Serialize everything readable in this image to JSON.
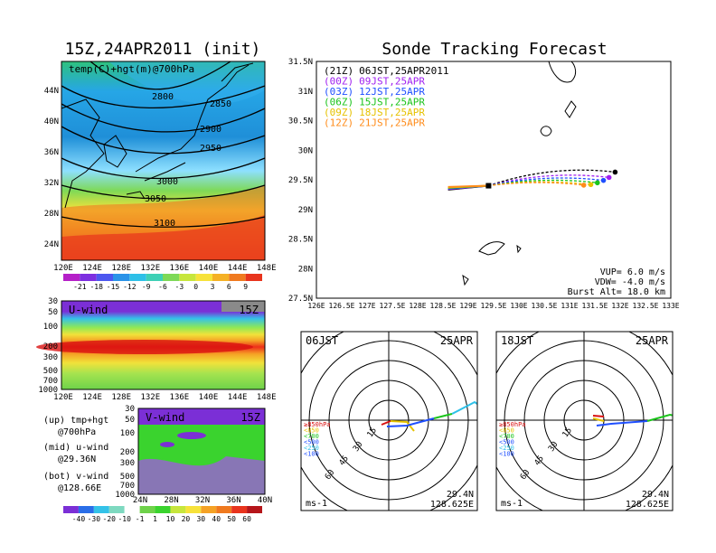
{
  "page": {
    "left_title": "15Z,24APR2011 (init)",
    "right_title": "Sonde Tracking Forecast"
  },
  "colors": {
    "cold": "#2a93e8",
    "warm": "#f23a1a",
    "track_21z": "#000000",
    "track_00z": "#a020f0",
    "track_03z": "#1f4fff",
    "track_06z": "#1bc41b",
    "track_09z": "#e6c200",
    "track_12z": "#ff8c1a"
  },
  "panels": {
    "temp_map": {
      "label": "temp(C)+hgt(m)@700hPa",
      "lon_ticks": [
        "120E",
        "124E",
        "128E",
        "132E",
        "136E",
        "140E",
        "144E",
        "148E"
      ],
      "lat_ticks": [
        "44N",
        "40N",
        "36N",
        "32N",
        "28N",
        "24N"
      ],
      "contours": [
        "2800",
        "2850",
        "2900",
        "2950",
        "3000",
        "3050",
        "3100"
      ],
      "colorbar": [
        "-21",
        "-18",
        "-15",
        "-12",
        "-9",
        "-6",
        "-3",
        "0",
        "3",
        "6",
        "9"
      ]
    },
    "uwind": {
      "label": "U-wind",
      "time": "15Z",
      "p_ticks": [
        "30",
        "50",
        "100",
        "200",
        "300",
        "500",
        "700",
        "1000"
      ],
      "lon_ticks": [
        "120E",
        "124E",
        "128E",
        "132E",
        "136E",
        "140E",
        "144E",
        "148E"
      ]
    },
    "vwind": {
      "label": "V-wind",
      "time": "15Z",
      "p_ticks": [
        "30",
        "50",
        "100",
        "200",
        "300",
        "500",
        "700",
        "1000"
      ],
      "lat_ticks": [
        "24N",
        "28N",
        "32N",
        "36N",
        "40N"
      ],
      "colorbar": [
        "-40",
        "-30",
        "-20",
        "-10",
        "-1",
        "1",
        "10",
        "20",
        "30",
        "40",
        "50",
        "60"
      ]
    },
    "legend_text": {
      "line1": "(up) tmp+hgt",
      "line2": "@700hPa",
      "line3": "(mid) u-wind",
      "line4": "@29.36N",
      "line5": "(bot) v-wind",
      "line6": "@128.66E"
    },
    "track": {
      "lat_ticks": [
        "31.5N",
        "31N",
        "30.5N",
        "30N",
        "29.5N",
        "29N",
        "28.5N",
        "28N",
        "27.5N"
      ],
      "lon_ticks": [
        "126E",
        "126.5E",
        "127E",
        "127.5E",
        "128E",
        "128.5E",
        "129E",
        "129.5E",
        "130E",
        "130.5E",
        "131E",
        "131.5E",
        "132E",
        "132.5E",
        "133E"
      ],
      "legend": [
        {
          "tag": "(21Z)",
          "text": "06JST,25APR2011",
          "color": "#000000"
        },
        {
          "tag": "(00Z)",
          "text": "09JST,25APR",
          "color": "#a020f0"
        },
        {
          "tag": "(03Z)",
          "text": "12JST,25APR",
          "color": "#1f4fff"
        },
        {
          "tag": "(06Z)",
          "text": "15JST,25APR",
          "color": "#1bc41b"
        },
        {
          "tag": "(09Z)",
          "text": "18JST,25APR",
          "color": "#e6c200"
        },
        {
          "tag": "(12Z)",
          "text": "21JST,25APR",
          "color": "#ff8c1a"
        }
      ],
      "vup": "VUP= 6.0 m/s",
      "vdw": "VDW= -4.0 m/s",
      "burst": "Burst Alt= 18.0 km"
    },
    "hodo_left": {
      "time": "06JST",
      "date": "25APR",
      "ring_labels": [
        "15",
        "30",
        "45",
        "60"
      ],
      "level_labels": [
        "≥850hPa",
        "<850",
        "<700",
        "<500",
        "<250",
        "<100"
      ],
      "unit": "ms-1",
      "lat": "29.4N",
      "lon": "128.625E"
    },
    "hodo_right": {
      "time": "18JST",
      "date": "25APR",
      "ring_labels": [
        "15",
        "30",
        "45",
        "60"
      ],
      "level_labels": [
        "≥850hPa",
        "<850",
        "<700",
        "<500",
        "<250",
        "<100"
      ],
      "unit": "ms-1",
      "lat": "29.4N",
      "lon": "128.625E"
    }
  },
  "chart_data": [
    {
      "type": "heatmap",
      "title": "15Z,24APR2011 (init)",
      "subtitle": "temp(C)+hgt(m)@700hPa",
      "x_ticks": [
        "120E",
        "124E",
        "128E",
        "132E",
        "136E",
        "140E",
        "144E",
        "148E"
      ],
      "y_ticks": [
        "44N",
        "40N",
        "36N",
        "32N",
        "28N",
        "24N"
      ],
      "contour_levels_m": [
        2800,
        2850,
        2900,
        2950,
        3000,
        3050,
        3100
      ],
      "colorbar_levels_C": [
        -21,
        -18,
        -15,
        -12,
        -9,
        -6,
        -3,
        0,
        3,
        6,
        9
      ]
    },
    {
      "type": "heatmap",
      "title": "U-wind",
      "x_ticks": [
        "120E",
        "124E",
        "128E",
        "132E",
        "136E",
        "140E",
        "144E",
        "148E"
      ],
      "y_ticks_hPa": [
        30,
        50,
        100,
        200,
        300,
        500,
        700,
        1000
      ]
    },
    {
      "type": "heatmap",
      "title": "V-wind",
      "x_ticks": [
        "24N",
        "28N",
        "32N",
        "36N",
        "40N"
      ],
      "y_ticks_hPa": [
        30,
        50,
        100,
        200,
        300,
        500,
        700,
        1000
      ],
      "colorbar_levels": [
        -40,
        -30,
        -20,
        -10,
        -1,
        1,
        10,
        20,
        30,
        40,
        50,
        60
      ]
    },
    {
      "type": "line",
      "title": "Sonde Tracking Forecast",
      "xlim": [
        126,
        133
      ],
      "ylim": [
        27.5,
        31.5
      ],
      "launch": {
        "lon": 129.4,
        "lat": 29.4
      },
      "series": [
        {
          "name": "(21Z) 06JST,25APR2011",
          "color": "#000000",
          "end": {
            "lon": 131.9,
            "lat": 29.63
          }
        },
        {
          "name": "(00Z) 09JST,25APR",
          "color": "#a020f0",
          "end": {
            "lon": 131.78,
            "lat": 29.54
          }
        },
        {
          "name": "(03Z) 12JST,25APR",
          "color": "#1f4fff",
          "end": {
            "lon": 131.67,
            "lat": 29.49
          }
        },
        {
          "name": "(06Z) 15JST,25APR",
          "color": "#1bc41b",
          "end": {
            "lon": 131.55,
            "lat": 29.45
          }
        },
        {
          "name": "(09Z) 18JST,25APR",
          "color": "#e6c200",
          "end": {
            "lon": 131.42,
            "lat": 29.42
          }
        },
        {
          "name": "(12Z) 21JST,25APR",
          "color": "#ff8c1a",
          "end": {
            "lon": 131.28,
            "lat": 29.41
          }
        }
      ]
    }
  ]
}
